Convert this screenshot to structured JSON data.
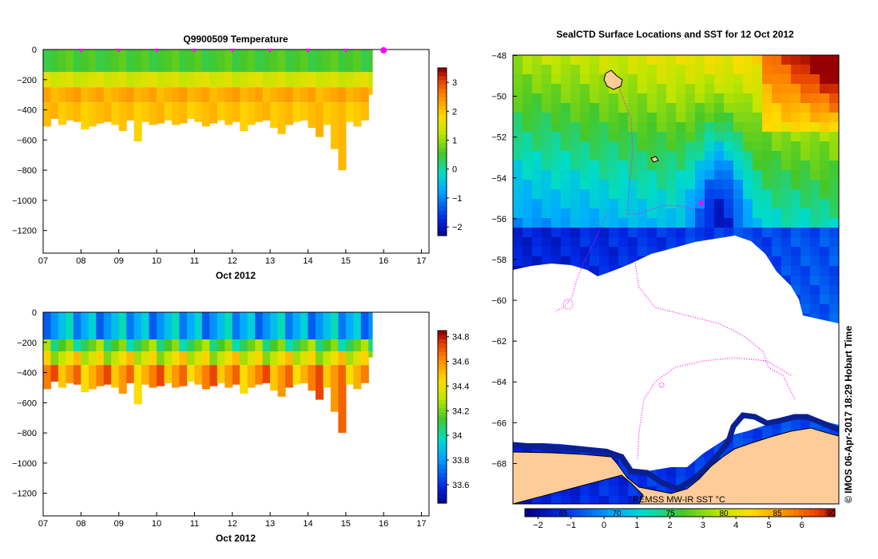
{
  "chart_data": [
    {
      "type": "heatmap",
      "title": "Q9900509  Temperature",
      "xlabel": "Oct 2012",
      "ylabel": "",
      "x_ticks": [
        "07",
        "08",
        "09",
        "10",
        "11",
        "12",
        "13",
        "14",
        "15",
        "16",
        "17"
      ],
      "xlim": [
        7,
        17.2
      ],
      "y_ticks": [
        "0",
        "−200",
        "−400",
        "−600",
        "−800",
        "−1000",
        "−1200"
      ],
      "ylim": [
        -1350,
        0
      ],
      "colorbar": {
        "ticks": [
          "3",
          "2",
          "1",
          "0",
          "−1",
          "−2"
        ],
        "range": [
          -2.3,
          3.5
        ]
      },
      "profile_markers_days": [
        8,
        9,
        10,
        11,
        12,
        13,
        14,
        15
      ],
      "highlight_day": 16,
      "data_end_day": 15.7,
      "bands": [
        {
          "from_depth": 0,
          "to_depth": -150,
          "value": 0.6
        },
        {
          "from_depth": -150,
          "to_depth": -250,
          "value": 1.5
        },
        {
          "from_depth": -250,
          "to_depth": -350,
          "value": 2.3
        },
        {
          "from_depth": -350,
          "to_depth": "max",
          "value": 2.1
        }
      ],
      "max_depth_by_day": [
        [
          7.0,
          -510
        ],
        [
          7.2,
          -460
        ],
        [
          7.4,
          -500
        ],
        [
          7.6,
          -470
        ],
        [
          7.8,
          -480
        ],
        [
          8.0,
          -530
        ],
        [
          8.2,
          -510
        ],
        [
          8.4,
          -490
        ],
        [
          8.6,
          -480
        ],
        [
          8.8,
          -500
        ],
        [
          9.0,
          -540
        ],
        [
          9.2,
          -470
        ],
        [
          9.4,
          -610
        ],
        [
          9.6,
          -480
        ],
        [
          9.8,
          -500
        ],
        [
          10.0,
          -490
        ],
        [
          10.2,
          -470
        ],
        [
          10.4,
          -500
        ],
        [
          10.6,
          -490
        ],
        [
          10.8,
          -460
        ],
        [
          11.0,
          -480
        ],
        [
          11.2,
          -510
        ],
        [
          11.4,
          -490
        ],
        [
          11.6,
          -470
        ],
        [
          11.8,
          -500
        ],
        [
          12.0,
          -480
        ],
        [
          12.2,
          -540
        ],
        [
          12.4,
          -500
        ],
        [
          12.6,
          -480
        ],
        [
          12.8,
          -470
        ],
        [
          13.0,
          -520
        ],
        [
          13.2,
          -560
        ],
        [
          13.4,
          -500
        ],
        [
          13.6,
          -480
        ],
        [
          13.8,
          -470
        ],
        [
          14.0,
          -520
        ],
        [
          14.2,
          -580
        ],
        [
          14.4,
          -500
        ],
        [
          14.6,
          -660
        ],
        [
          14.8,
          -800
        ],
        [
          15.0,
          -480
        ],
        [
          15.2,
          -510
        ],
        [
          15.4,
          -470
        ],
        [
          15.6,
          -300
        ]
      ]
    },
    {
      "type": "heatmap",
      "title": "",
      "xlabel": "Oct 2012",
      "ylabel": "",
      "x_ticks": [
        "07",
        "08",
        "09",
        "10",
        "11",
        "12",
        "13",
        "14",
        "15",
        "16",
        "17"
      ],
      "xlim": [
        7,
        17.2
      ],
      "y_ticks": [
        "0",
        "−200",
        "−400",
        "−600",
        "−800",
        "−1000",
        "−1200"
      ],
      "ylim": [
        -1350,
        0
      ],
      "colorbar": {
        "ticks": [
          "34.8",
          "34.6",
          "34.4",
          "34.2",
          "34",
          "33.8",
          "33.6"
        ],
        "range": [
          33.45,
          34.85
        ]
      },
      "data_end_day": 15.7,
      "bands": [
        {
          "from_depth": 0,
          "to_depth": -180,
          "value": 33.85
        },
        {
          "from_depth": -180,
          "to_depth": -260,
          "value": 34.15
        },
        {
          "from_depth": -260,
          "to_depth": -350,
          "value": 34.38
        },
        {
          "from_depth": -350,
          "to_depth": "max",
          "value": 34.6
        }
      ],
      "max_depth_by_day": [
        [
          7.0,
          -510
        ],
        [
          7.2,
          -460
        ],
        [
          7.4,
          -500
        ],
        [
          7.6,
          -470
        ],
        [
          7.8,
          -480
        ],
        [
          8.0,
          -530
        ],
        [
          8.2,
          -510
        ],
        [
          8.4,
          -490
        ],
        [
          8.6,
          -480
        ],
        [
          8.8,
          -500
        ],
        [
          9.0,
          -540
        ],
        [
          9.2,
          -470
        ],
        [
          9.4,
          -610
        ],
        [
          9.6,
          -480
        ],
        [
          9.8,
          -500
        ],
        [
          10.0,
          -490
        ],
        [
          10.2,
          -470
        ],
        [
          10.4,
          -500
        ],
        [
          10.6,
          -490
        ],
        [
          10.8,
          -460
        ],
        [
          11.0,
          -480
        ],
        [
          11.2,
          -510
        ],
        [
          11.4,
          -490
        ],
        [
          11.6,
          -470
        ],
        [
          11.8,
          -500
        ],
        [
          12.0,
          -480
        ],
        [
          12.2,
          -540
        ],
        [
          12.4,
          -500
        ],
        [
          12.6,
          -480
        ],
        [
          12.8,
          -470
        ],
        [
          13.0,
          -520
        ],
        [
          13.2,
          -560
        ],
        [
          13.4,
          -500
        ],
        [
          13.6,
          -480
        ],
        [
          13.8,
          -470
        ],
        [
          14.0,
          -520
        ],
        [
          14.2,
          -580
        ],
        [
          14.4,
          -500
        ],
        [
          14.6,
          -660
        ],
        [
          14.8,
          -800
        ],
        [
          15.0,
          -480
        ],
        [
          15.2,
          -510
        ],
        [
          15.4,
          -470
        ],
        [
          15.6,
          -300
        ]
      ]
    },
    {
      "type": "heatmap",
      "title": "SealCTD Surface Locations and SST for 12 Oct 2012",
      "xlabel": "",
      "ylabel": "",
      "y_ticks": [
        "−48",
        "−50",
        "−52",
        "−54",
        "−56",
        "−58",
        "−60",
        "−62",
        "−64",
        "−66",
        "−68"
      ],
      "ylim": [
        -70,
        -48
      ],
      "x_ticks_top": [
        "65",
        "70",
        "75",
        "80",
        "85",
        "90"
      ],
      "colorbar": {
        "label": "REMSS MW-IR SST °C",
        "ticks": [
          "−2",
          "−1",
          "0",
          "1",
          "2",
          "3",
          "4",
          "5",
          "6"
        ],
        "range": [
          -2.4,
          7.0
        ]
      },
      "credit": "©  IMOS 06-Apr-2017 18:29 Hobart Time",
      "colors": {
        "land": "#fdcc99",
        "ice_edge": "#0a2090",
        "track": "#ff00ff",
        "no_data": "#ffffff"
      }
    }
  ]
}
